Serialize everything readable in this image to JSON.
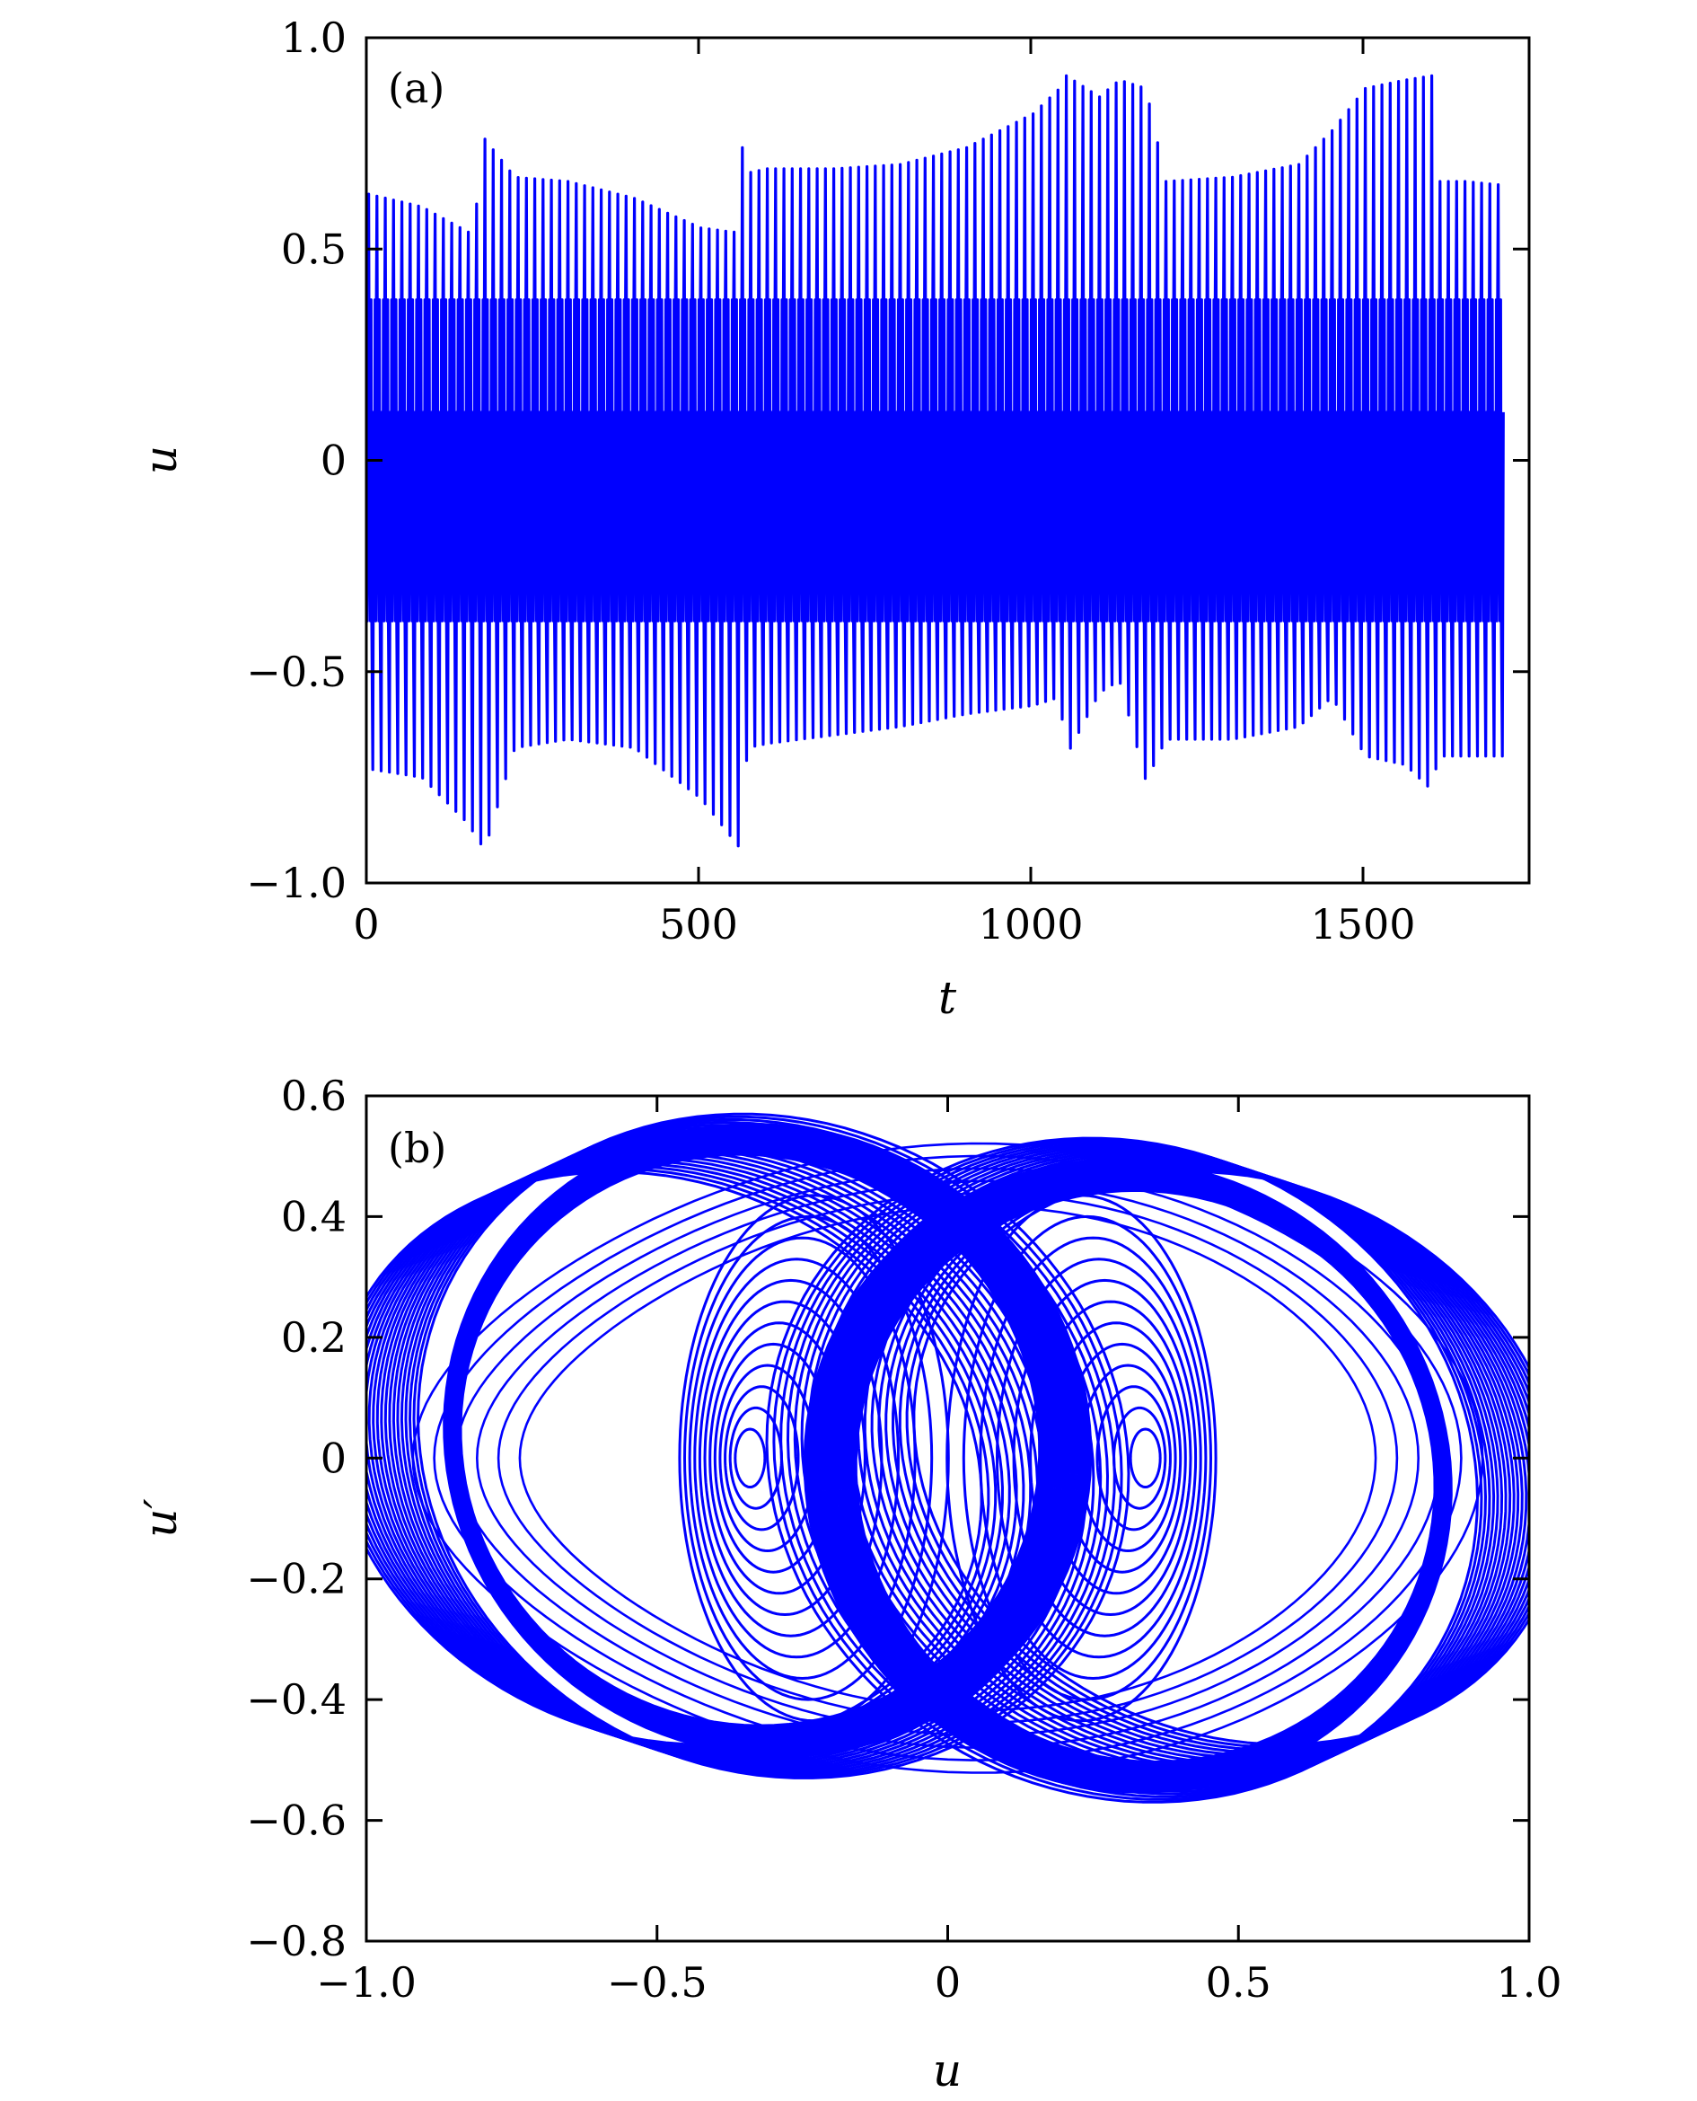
{
  "colors": {
    "series": "#0000ff",
    "axis": "#000000",
    "background": "#ffffff"
  },
  "chart_data": [
    {
      "type": "line",
      "panel_label": "(a)",
      "xlabel": "t",
      "ylabel": "u",
      "xlim": [
        0,
        1750
      ],
      "ylim": [
        -1.0,
        1.0
      ],
      "xticks": [
        0,
        500,
        1000,
        1500
      ],
      "xtick_labels": [
        "0",
        "500",
        "1000",
        "1500"
      ],
      "yticks": [
        -1.0,
        -0.5,
        0,
        0.5,
        1.0
      ],
      "ytick_labels": [
        "−1.0",
        "−0.5",
        "0",
        "0.5",
        "1.0"
      ],
      "grid": false,
      "series": [
        {
          "color": "#0000ff",
          "t_range": [
            0,
            1715
          ],
          "oscillation_period": 12.5,
          "peak_envelope": {
            "t": [
              0,
              80,
              150,
              165,
              175,
              220,
              300,
              400,
              500,
              550,
              560,
              570,
              600,
              700,
              800,
              900,
              1000,
              1040,
              1050,
              1100,
              1130,
              1170,
              1200,
              1300,
              1400,
              1450,
              1500,
              1560,
              1600,
              1610,
              1650,
              1715
            ],
            "max": [
              0.63,
              0.6,
              0.54,
              0.62,
              0.76,
              0.67,
              0.66,
              0.62,
              0.55,
              0.54,
              0.76,
              0.68,
              0.69,
              0.69,
              0.7,
              0.74,
              0.82,
              0.88,
              0.91,
              0.86,
              0.9,
              0.88,
              0.66,
              0.67,
              0.7,
              0.78,
              0.88,
              0.9,
              0.91,
              0.66,
              0.66,
              0.65
            ],
            "min": [
              -0.73,
              -0.75,
              -0.86,
              -0.9,
              -0.92,
              -0.68,
              -0.66,
              -0.68,
              -0.8,
              -0.9,
              -0.92,
              -0.68,
              -0.67,
              -0.65,
              -0.63,
              -0.6,
              -0.58,
              -0.56,
              -0.7,
              -0.55,
              -0.52,
              -0.76,
              -0.66,
              -0.66,
              -0.63,
              -0.56,
              -0.7,
              -0.72,
              -0.78,
              -0.7,
              -0.7,
              -0.7
            ]
          },
          "inner_band": [
            -0.38,
            0.38
          ]
        }
      ]
    },
    {
      "type": "line",
      "panel_label": "(b)",
      "xlabel": "u",
      "ylabel": "u′",
      "xlim": [
        -1.0,
        1.0
      ],
      "ylim": [
        -0.8,
        0.6
      ],
      "xticks": [
        -1.0,
        -0.5,
        0,
        0.5,
        1.0
      ],
      "xtick_labels": [
        "−1.0",
        "−0.5",
        "0",
        "0.5",
        "1.0"
      ],
      "yticks": [
        -0.8,
        -0.6,
        -0.4,
        -0.2,
        0,
        0.2,
        0.4,
        0.6
      ],
      "ytick_labels": [
        "−0.8",
        "−0.6",
        "−0.4",
        "−0.2",
        "0",
        "0.2",
        "0.4",
        "0.6"
      ],
      "grid": false,
      "series": [
        {
          "color": "#0000ff",
          "u_range": [
            -0.92,
            0.92
          ],
          "du_range": [
            -0.56,
            0.56
          ],
          "left_lobe_center": [
            -0.34,
            0.0
          ],
          "right_lobe_center": [
            0.34,
            0.0
          ]
        }
      ]
    }
  ]
}
